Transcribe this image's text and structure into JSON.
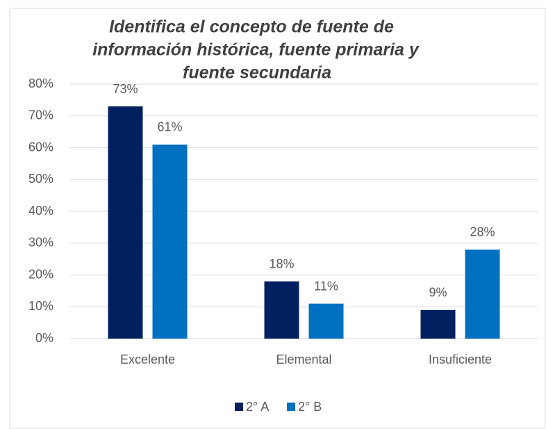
{
  "chart_data": {
    "type": "bar",
    "title": [
      "Identifica el concepto de fuente de",
      "información histórica, fuente primaria y",
      "fuente secundaria"
    ],
    "categories": [
      "Excelente",
      "Elemental",
      "Insuficiente"
    ],
    "series": [
      {
        "name": "2° A",
        "color": "#002060",
        "values": [
          73,
          18,
          9
        ],
        "value_labels": [
          "73%",
          "18%",
          "9%"
        ]
      },
      {
        "name": "2° B",
        "color": "#0070c0",
        "values": [
          61,
          11,
          28
        ],
        "value_labels": [
          "61%",
          "11%",
          "28%"
        ]
      }
    ],
    "ylim": [
      0,
      80
    ],
    "yticks": [
      {
        "value": 0,
        "label": "0%"
      },
      {
        "value": 10,
        "label": "10%"
      },
      {
        "value": 20,
        "label": "20%"
      },
      {
        "value": 30,
        "label": "30%"
      },
      {
        "value": 40,
        "label": "40%"
      },
      {
        "value": 50,
        "label": "50%"
      },
      {
        "value": 60,
        "label": "60%"
      },
      {
        "value": 70,
        "label": "70%"
      },
      {
        "value": 80,
        "label": "80%"
      }
    ],
    "grid": true,
    "legend": "bottom"
  }
}
